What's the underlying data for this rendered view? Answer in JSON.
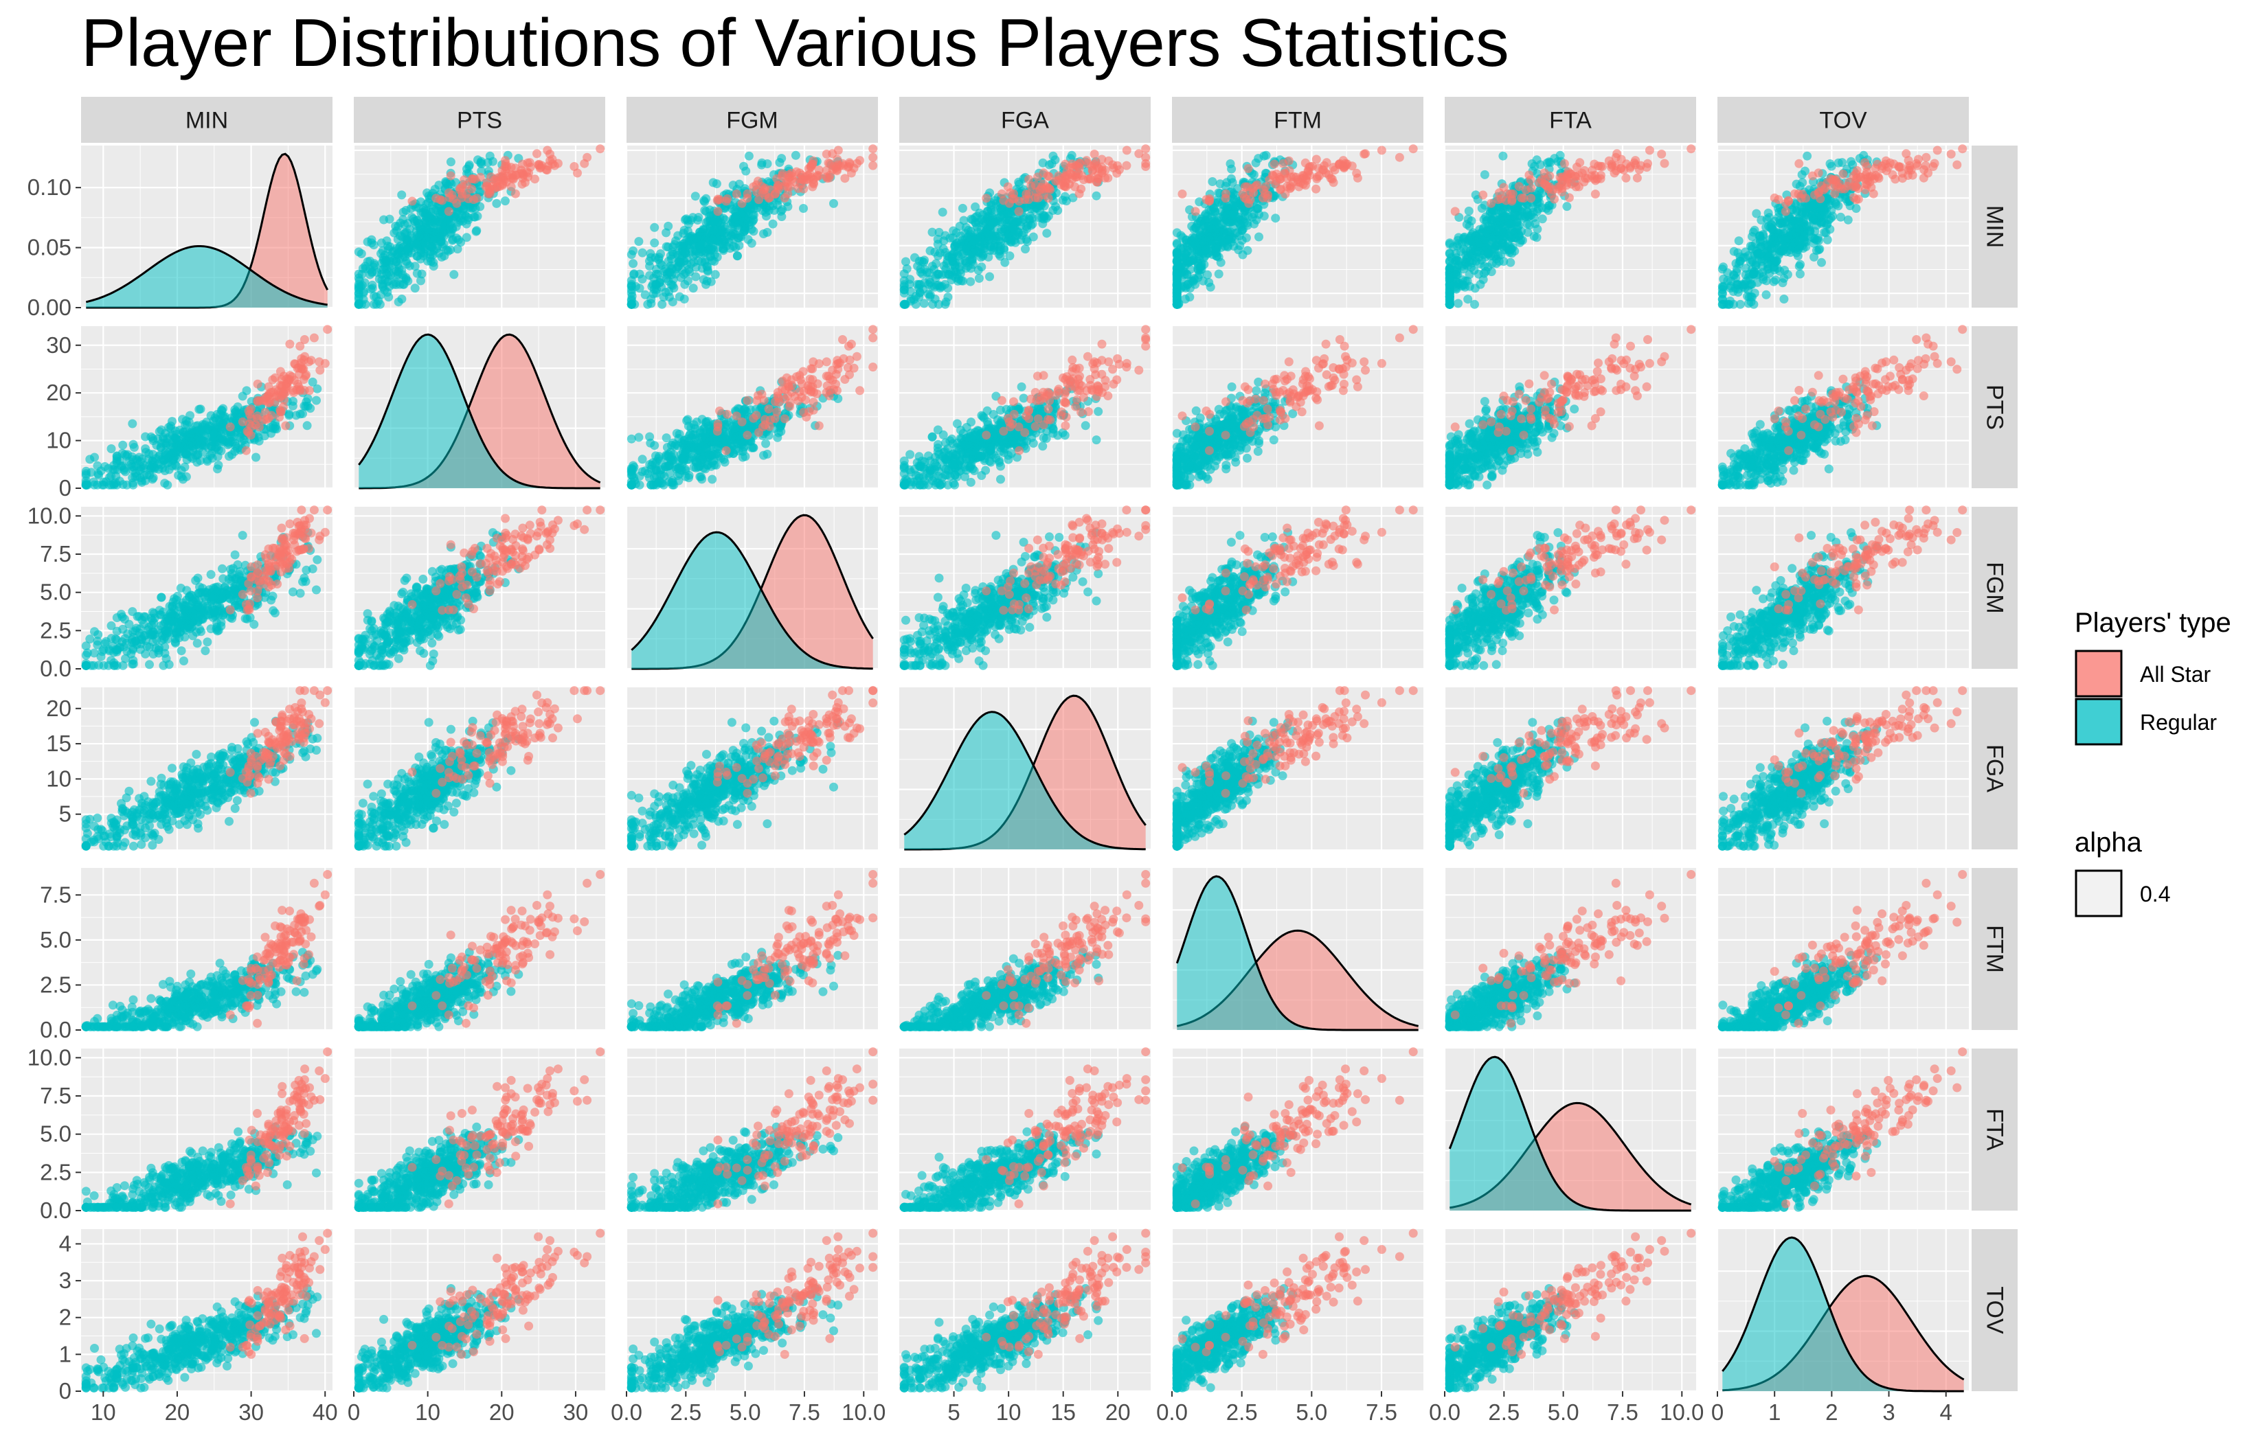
{
  "title": "Player Distributions of Various Players Statistics",
  "colors": {
    "all_star": "#F8766D",
    "regular": "#00BFC4",
    "panel_bg": "#EBEBEB",
    "strip_bg": "#D9D9D9",
    "grid": "#FFFFFF"
  },
  "chart_data": {
    "type": "scatter",
    "subtype": "pairs-plot (scatterplot matrix with density diagonal)",
    "variables": [
      "MIN",
      "PTS",
      "FGM",
      "FGA",
      "FTM",
      "FTA",
      "TOV"
    ],
    "axes": {
      "MIN": {
        "lim": [
          7,
          41
        ],
        "ticks": [
          10,
          20,
          30,
          40
        ],
        "labels": [
          "10",
          "20",
          "30",
          "40"
        ]
      },
      "PTS": {
        "lim": [
          0,
          34
        ],
        "ticks": [
          0,
          10,
          20,
          30
        ],
        "labels": [
          "0",
          "10",
          "20",
          "30"
        ]
      },
      "FGM": {
        "lim": [
          0,
          10.6
        ],
        "ticks": [
          0,
          2.5,
          5,
          7.5,
          10
        ],
        "labels": [
          "0.0",
          "2.5",
          "5.0",
          "7.5",
          "10.0"
        ]
      },
      "FGA": {
        "lim": [
          0,
          23
        ],
        "ticks": [
          5,
          10,
          15,
          20
        ],
        "labels": [
          "5",
          "10",
          "15",
          "20"
        ]
      },
      "FTM": {
        "lim": [
          0,
          9
        ],
        "ticks": [
          0,
          2.5,
          5,
          7.5
        ],
        "labels": [
          "0.0",
          "2.5",
          "5.0",
          "7.5"
        ]
      },
      "FTA": {
        "lim": [
          0,
          10.6
        ],
        "ticks": [
          0,
          2.5,
          5,
          7.5,
          10
        ],
        "labels": [
          "0.0",
          "2.5",
          "5.0",
          "7.5",
          "10.0"
        ]
      },
      "TOV": {
        "lim": [
          0,
          4.4
        ],
        "ticks": [
          0,
          1,
          2,
          3,
          4
        ],
        "labels": [
          "0",
          "1",
          "2",
          "3",
          "4"
        ]
      }
    },
    "density_axis": {
      "lim": [
        0,
        0.135
      ],
      "ticks": [
        0,
        0.05,
        0.1
      ],
      "labels": [
        "0.00",
        "0.05",
        "0.10"
      ]
    },
    "groups": [
      {
        "name": "All Star",
        "key": "all_star",
        "means": {
          "MIN": 34.5,
          "PTS": 21,
          "FGM": 7.5,
          "FGA": 16,
          "FTM": 4.5,
          "FTA": 5.6,
          "TOV": 2.6
        },
        "sds": {
          "MIN": 2.8,
          "PTS": 4.8,
          "FGM": 1.6,
          "FGA": 3.4,
          "FTM": 1.7,
          "FTA": 2.0,
          "TOV": 0.8
        }
      },
      {
        "name": "Regular",
        "key": "regular",
        "means": {
          "MIN": 23,
          "PTS": 10,
          "FGM": 3.8,
          "FGA": 8.5,
          "FTM": 1.6,
          "FTA": 2.1,
          "TOV": 1.3
        },
        "sds": {
          "MIN": 7,
          "PTS": 4.8,
          "FGM": 1.8,
          "FGA": 3.8,
          "FTM": 1.1,
          "FTA": 1.4,
          "TOV": 0.6
        }
      }
    ],
    "marker_alpha": 0.6,
    "density_alpha": 0.5,
    "grid": true
  },
  "legend": {
    "title": "Players' type",
    "items": [
      {
        "label": "All Star",
        "color": "#F8766D"
      },
      {
        "label": "Regular",
        "color": "#00BFC4"
      }
    ],
    "alpha_title": "alpha",
    "alpha_value": "0.4",
    "placement": "right"
  }
}
